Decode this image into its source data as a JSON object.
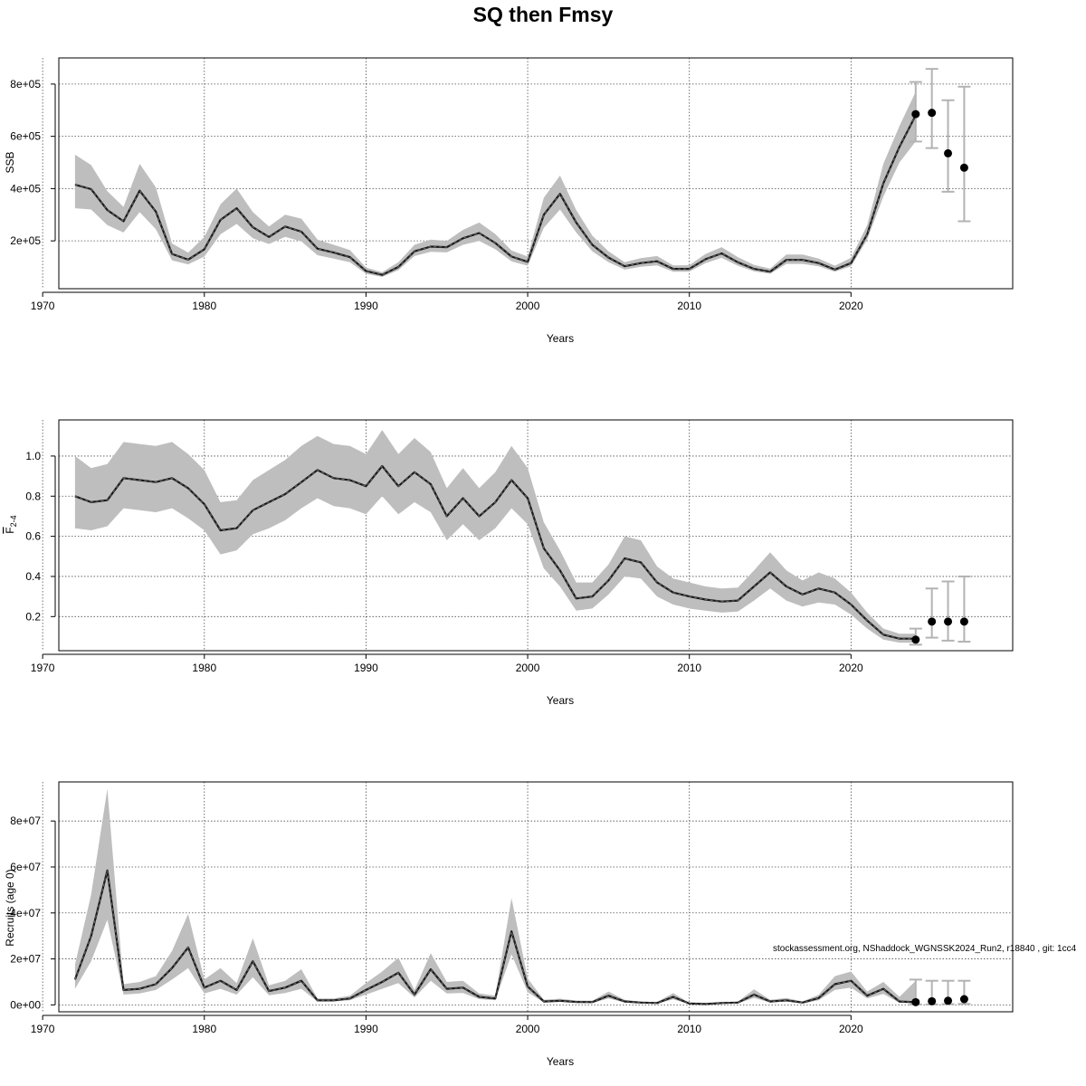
{
  "title": "SQ then Fmsy",
  "footnote": "stockassessment.org, NShaddock_WGNSSK2024_Run2, r18840 , git: 1cc4",
  "colors": {
    "band": "#bebebe",
    "line": "#1a1a1a",
    "forecast_ci": "#b3b3b3",
    "forecast_point": "#000000",
    "grid": "#4d4d4d"
  },
  "chart_data": [
    {
      "type": "line",
      "name": "ssb",
      "xlabel": "Years",
      "ylabel": "SSB",
      "xlim": [
        1971,
        2030
      ],
      "ylim": [
        17000,
        900000
      ],
      "grid": true,
      "xticks": [
        1970,
        1980,
        1990,
        2000,
        2010,
        2020
      ],
      "yticks": [
        200000,
        400000,
        600000,
        800000
      ],
      "ytick_labels": [
        "2e+05",
        "4e+05",
        "6e+05",
        "8e+05"
      ],
      "x": [
        1972,
        1973,
        1974,
        1975,
        1976,
        1977,
        1978,
        1979,
        1980,
        1981,
        1982,
        1983,
        1984,
        1985,
        1986,
        1987,
        1988,
        1989,
        1990,
        1991,
        1992,
        1993,
        1994,
        1995,
        1996,
        1997,
        1998,
        1999,
        2000,
        2001,
        2002,
        2003,
        2004,
        2005,
        2006,
        2007,
        2008,
        2009,
        2010,
        2011,
        2012,
        2013,
        2014,
        2015,
        2016,
        2017,
        2018,
        2019,
        2020,
        2021,
        2022,
        2023,
        2024
      ],
      "estimate": [
        415000,
        398000,
        318000,
        275000,
        392000,
        312000,
        150000,
        128000,
        168000,
        280000,
        325000,
        252000,
        215000,
        255000,
        235000,
        170000,
        155000,
        138000,
        85000,
        70000,
        100000,
        160000,
        178000,
        176000,
        210000,
        230000,
        192000,
        140000,
        120000,
        300000,
        380000,
        270000,
        185000,
        136000,
        103000,
        115000,
        122000,
        93000,
        93000,
        130000,
        152000,
        118000,
        93000,
        82000,
        127000,
        127000,
        115000,
        90000,
        115000,
        225000,
        420000,
        560000,
        680000
      ],
      "lower": [
        325000,
        320000,
        260000,
        232000,
        310000,
        245000,
        125000,
        110000,
        140000,
        225000,
        265000,
        210000,
        188000,
        215000,
        198000,
        145000,
        132000,
        118000,
        74000,
        62000,
        88000,
        142000,
        158000,
        156000,
        185000,
        200000,
        168000,
        122000,
        105000,
        250000,
        320000,
        232000,
        160000,
        118000,
        90000,
        101000,
        106000,
        82000,
        82000,
        115000,
        135000,
        105000,
        83000,
        74000,
        112000,
        112000,
        103000,
        82000,
        103000,
        205000,
        370000,
        500000,
        580000
      ],
      "upper": [
        530000,
        490000,
        390000,
        330000,
        495000,
        405000,
        190000,
        155000,
        215000,
        340000,
        400000,
        310000,
        255000,
        300000,
        285000,
        205000,
        185000,
        165000,
        98000,
        80000,
        118000,
        185000,
        205000,
        200000,
        242000,
        270000,
        226000,
        163000,
        140000,
        365000,
        450000,
        318000,
        220000,
        160000,
        118000,
        134000,
        142000,
        106000,
        107000,
        150000,
        176000,
        138000,
        108000,
        94000,
        148000,
        148000,
        132000,
        105000,
        135000,
        260000,
        495000,
        640000,
        770000
      ],
      "forecast": {
        "x": [
          2024,
          2025,
          2026,
          2027
        ],
        "median": [
          685000,
          690000,
          535000,
          480000
        ],
        "lower": [
          580000,
          555000,
          388000,
          275000
        ],
        "upper": [
          808000,
          858000,
          738000,
          790000
        ]
      }
    },
    {
      "type": "line",
      "name": "fbar",
      "xlabel": "Years",
      "ylabel": "F",
      "ylabel_sub": "2-4",
      "xlim": [
        1971,
        2030
      ],
      "ylim": [
        0.03,
        1.18
      ],
      "grid": true,
      "xticks": [
        1970,
        1980,
        1990,
        2000,
        2010,
        2020
      ],
      "yticks": [
        0.2,
        0.4,
        0.6,
        0.8,
        1.0
      ],
      "ytick_labels": [
        "0.2",
        "0.4",
        "0.6",
        "0.8",
        "1.0"
      ],
      "x": [
        1972,
        1973,
        1974,
        1975,
        1976,
        1977,
        1978,
        1979,
        1980,
        1981,
        1982,
        1983,
        1984,
        1985,
        1986,
        1987,
        1988,
        1989,
        1990,
        1991,
        1992,
        1993,
        1994,
        1995,
        1996,
        1997,
        1998,
        1999,
        2000,
        2001,
        2002,
        2003,
        2004,
        2005,
        2006,
        2007,
        2008,
        2009,
        2010,
        2011,
        2012,
        2013,
        2014,
        2015,
        2016,
        2017,
        2018,
        2019,
        2020,
        2021,
        2022,
        2023,
        2024
      ],
      "estimate": [
        0.8,
        0.77,
        0.78,
        0.89,
        0.88,
        0.87,
        0.89,
        0.84,
        0.76,
        0.63,
        0.64,
        0.73,
        0.77,
        0.81,
        0.87,
        0.93,
        0.89,
        0.88,
        0.85,
        0.95,
        0.85,
        0.92,
        0.86,
        0.7,
        0.79,
        0.7,
        0.77,
        0.88,
        0.79,
        0.54,
        0.43,
        0.29,
        0.3,
        0.38,
        0.49,
        0.47,
        0.37,
        0.32,
        0.3,
        0.285,
        0.275,
        0.28,
        0.35,
        0.42,
        0.35,
        0.31,
        0.34,
        0.32,
        0.26,
        0.18,
        0.11,
        0.09,
        0.09
      ],
      "lower": [
        0.64,
        0.63,
        0.65,
        0.74,
        0.73,
        0.72,
        0.74,
        0.69,
        0.63,
        0.51,
        0.53,
        0.61,
        0.64,
        0.68,
        0.74,
        0.79,
        0.75,
        0.74,
        0.71,
        0.8,
        0.71,
        0.77,
        0.72,
        0.58,
        0.66,
        0.58,
        0.64,
        0.74,
        0.66,
        0.44,
        0.35,
        0.23,
        0.24,
        0.31,
        0.4,
        0.39,
        0.3,
        0.26,
        0.24,
        0.23,
        0.22,
        0.225,
        0.28,
        0.34,
        0.28,
        0.25,
        0.27,
        0.26,
        0.21,
        0.14,
        0.085,
        0.07,
        0.07
      ],
      "upper": [
        1.0,
        0.94,
        0.96,
        1.07,
        1.06,
        1.05,
        1.07,
        1.01,
        0.93,
        0.77,
        0.78,
        0.88,
        0.93,
        0.98,
        1.05,
        1.1,
        1.06,
        1.05,
        1.01,
        1.13,
        1.01,
        1.09,
        1.02,
        0.84,
        0.94,
        0.84,
        0.92,
        1.05,
        0.94,
        0.67,
        0.53,
        0.37,
        0.37,
        0.46,
        0.6,
        0.58,
        0.45,
        0.39,
        0.37,
        0.35,
        0.34,
        0.345,
        0.43,
        0.52,
        0.43,
        0.38,
        0.42,
        0.39,
        0.32,
        0.22,
        0.14,
        0.115,
        0.115
      ],
      "forecast": {
        "x": [
          2024,
          2025,
          2026,
          2027
        ],
        "median": [
          0.085,
          0.175,
          0.175,
          0.175
        ],
        "lower": [
          0.06,
          0.095,
          0.08,
          0.075
        ],
        "upper": [
          0.14,
          0.34,
          0.375,
          0.4
        ]
      }
    },
    {
      "type": "line",
      "name": "recruits",
      "xlabel": "Years",
      "ylabel": "Recruits (age 0)",
      "xlim": [
        1971,
        2030
      ],
      "ylim": [
        -3000000,
        97000000
      ],
      "grid": true,
      "xticks": [
        1970,
        1980,
        1990,
        2000,
        2010,
        2020
      ],
      "yticks": [
        0,
        20000000,
        40000000,
        60000000,
        80000000
      ],
      "ytick_labels": [
        "0e+00",
        "2e+07",
        "4e+07",
        "6e+07",
        "8e+07"
      ],
      "x": [
        1972,
        1973,
        1974,
        1975,
        1976,
        1977,
        1978,
        1979,
        1980,
        1981,
        1982,
        1983,
        1984,
        1985,
        1986,
        1987,
        1988,
        1989,
        1990,
        1991,
        1992,
        1993,
        1994,
        1995,
        1996,
        1997,
        1998,
        1999,
        2000,
        2001,
        2002,
        2003,
        2004,
        2005,
        2006,
        2007,
        2008,
        2009,
        2010,
        2011,
        2012,
        2013,
        2014,
        2015,
        2016,
        2017,
        2018,
        2019,
        2020,
        2021,
        2022,
        2023,
        2024
      ],
      "estimate": [
        11000000,
        30000000,
        58500000,
        6500000,
        7000000,
        9000000,
        16000000,
        25000000,
        7500000,
        10500000,
        6500000,
        19000000,
        6000000,
        7500000,
        10500000,
        2000000,
        2000000,
        2800000,
        6500000,
        10000000,
        14000000,
        4500000,
        15500000,
        7000000,
        7500000,
        3500000,
        2800000,
        32000000,
        8000000,
        1500000,
        1800000,
        1300000,
        1200000,
        4000000,
        1500000,
        1000000,
        800000,
        3500000,
        600000,
        400000,
        800000,
        1000000,
        4500000,
        1500000,
        2000000,
        1000000,
        3000000,
        9000000,
        10500000,
        4000000,
        7000000,
        1500000,
        1200000
      ],
      "lower": [
        7000000,
        19000000,
        37000000,
        4500000,
        5000000,
        6500000,
        11000000,
        16000000,
        5000000,
        7000000,
        4500000,
        12000000,
        4200000,
        5200000,
        7000000,
        1400000,
        1400000,
        2000000,
        4500000,
        7000000,
        9500000,
        3200000,
        10500000,
        5000000,
        5200000,
        2500000,
        2000000,
        22000000,
        5500000,
        1000000,
        1200000,
        900000,
        800000,
        2800000,
        1000000,
        700000,
        550000,
        2400000,
        400000,
        250000,
        550000,
        700000,
        3000000,
        1000000,
        1400000,
        700000,
        2000000,
        6500000,
        7500000,
        2800000,
        4800000,
        900000,
        500000
      ],
      "upper": [
        17500000,
        48000000,
        94000000,
        9000000,
        10000000,
        12500000,
        23500000,
        39500000,
        11000000,
        16000000,
        9500000,
        29000000,
        8500000,
        10500000,
        15500000,
        2800000,
        2800000,
        4000000,
        9500000,
        14500000,
        20500000,
        6500000,
        22500000,
        10000000,
        10500000,
        5000000,
        4000000,
        46500000,
        11500000,
        2200000,
        2700000,
        1900000,
        1800000,
        5800000,
        2200000,
        1450000,
        1200000,
        5200000,
        900000,
        600000,
        1200000,
        1450000,
        6800000,
        2200000,
        3000000,
        1500000,
        4400000,
        12500000,
        14500000,
        5800000,
        10000000,
        3500000,
        10500000
      ],
      "forecast": {
        "x": [
          2024,
          2025,
          2026,
          2027
        ],
        "median": [
          1200000,
          1600000,
          1800000,
          2500000
        ],
        "lower": [
          200000,
          200000,
          300000,
          400000
        ],
        "upper": [
          11000000,
          10500000,
          10500000,
          10500000
        ]
      }
    }
  ]
}
